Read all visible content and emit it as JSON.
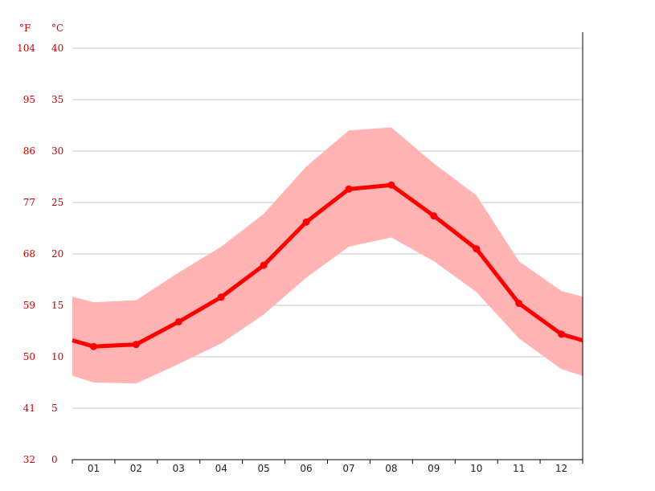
{
  "chart_data": {
    "type": "line",
    "categories": [
      "01",
      "02",
      "03",
      "04",
      "05",
      "06",
      "07",
      "08",
      "09",
      "10",
      "11",
      "12"
    ],
    "y_unit_left": "°F",
    "y_unit_right": "°C",
    "ylim": [
      0,
      40
    ],
    "y_ticks_c": [
      0,
      5,
      10,
      15,
      20,
      25,
      30,
      35,
      40
    ],
    "y_ticks_f": [
      "32",
      "41",
      "50",
      "59",
      "68",
      "77",
      "86",
      "95",
      "104"
    ],
    "grid": true,
    "series": [
      {
        "values": [
          11.0,
          11.2,
          13.4,
          15.8,
          18.9,
          23.1,
          26.3,
          26.7,
          23.7,
          20.5,
          15.2,
          12.2
        ]
      }
    ],
    "range_band": {
      "upper": [
        15.3,
        15.5,
        18.2,
        20.7,
        23.9,
        28.5,
        32.0,
        32.3,
        28.8,
        25.7,
        19.3,
        16.4
      ],
      "lower": [
        7.5,
        7.4,
        9.3,
        11.3,
        14.1,
        17.7,
        20.7,
        21.6,
        19.3,
        16.3,
        11.8,
        8.8
      ]
    },
    "colors": {
      "line": "#ff0000",
      "band": "#ffb3b3",
      "grid": "#c8c8c8",
      "axis": "#000000",
      "y_labels": "#cc0000"
    }
  }
}
